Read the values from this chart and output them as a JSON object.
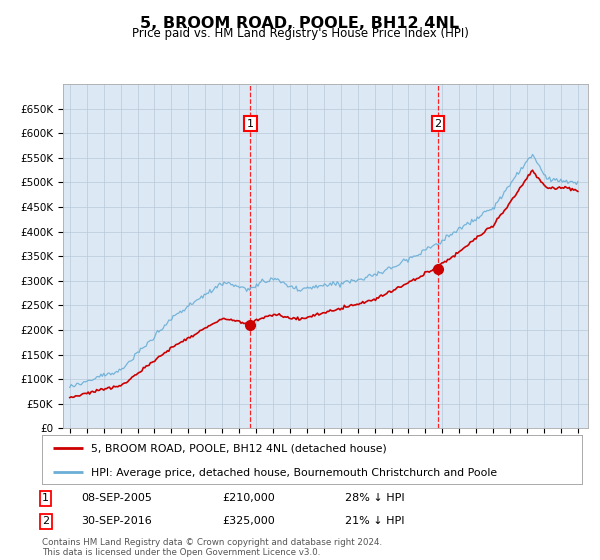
{
  "title": "5, BROOM ROAD, POOLE, BH12 4NL",
  "subtitle": "Price paid vs. HM Land Registry's House Price Index (HPI)",
  "plot_bg_color": "#dce9f5",
  "legend_line1": "5, BROOM ROAD, POOLE, BH12 4NL (detached house)",
  "legend_line2": "HPI: Average price, detached house, Bournemouth Christchurch and Poole",
  "sale1_date": "08-SEP-2005",
  "sale1_price": 210000,
  "sale1_pct": "28% ↓ HPI",
  "sale2_date": "30-SEP-2016",
  "sale2_price": 325000,
  "sale2_pct": "21% ↓ HPI",
  "footer": "Contains HM Land Registry data © Crown copyright and database right 2024.\nThis data is licensed under the Open Government Licence v3.0.",
  "ylim": [
    0,
    700000
  ],
  "yticks": [
    0,
    50000,
    100000,
    150000,
    200000,
    250000,
    300000,
    350000,
    400000,
    450000,
    500000,
    550000,
    600000,
    650000
  ],
  "sale1_x": 2005.67,
  "sale2_x": 2016.75,
  "red_color": "#cc0000",
  "blue_color": "#6baed6"
}
